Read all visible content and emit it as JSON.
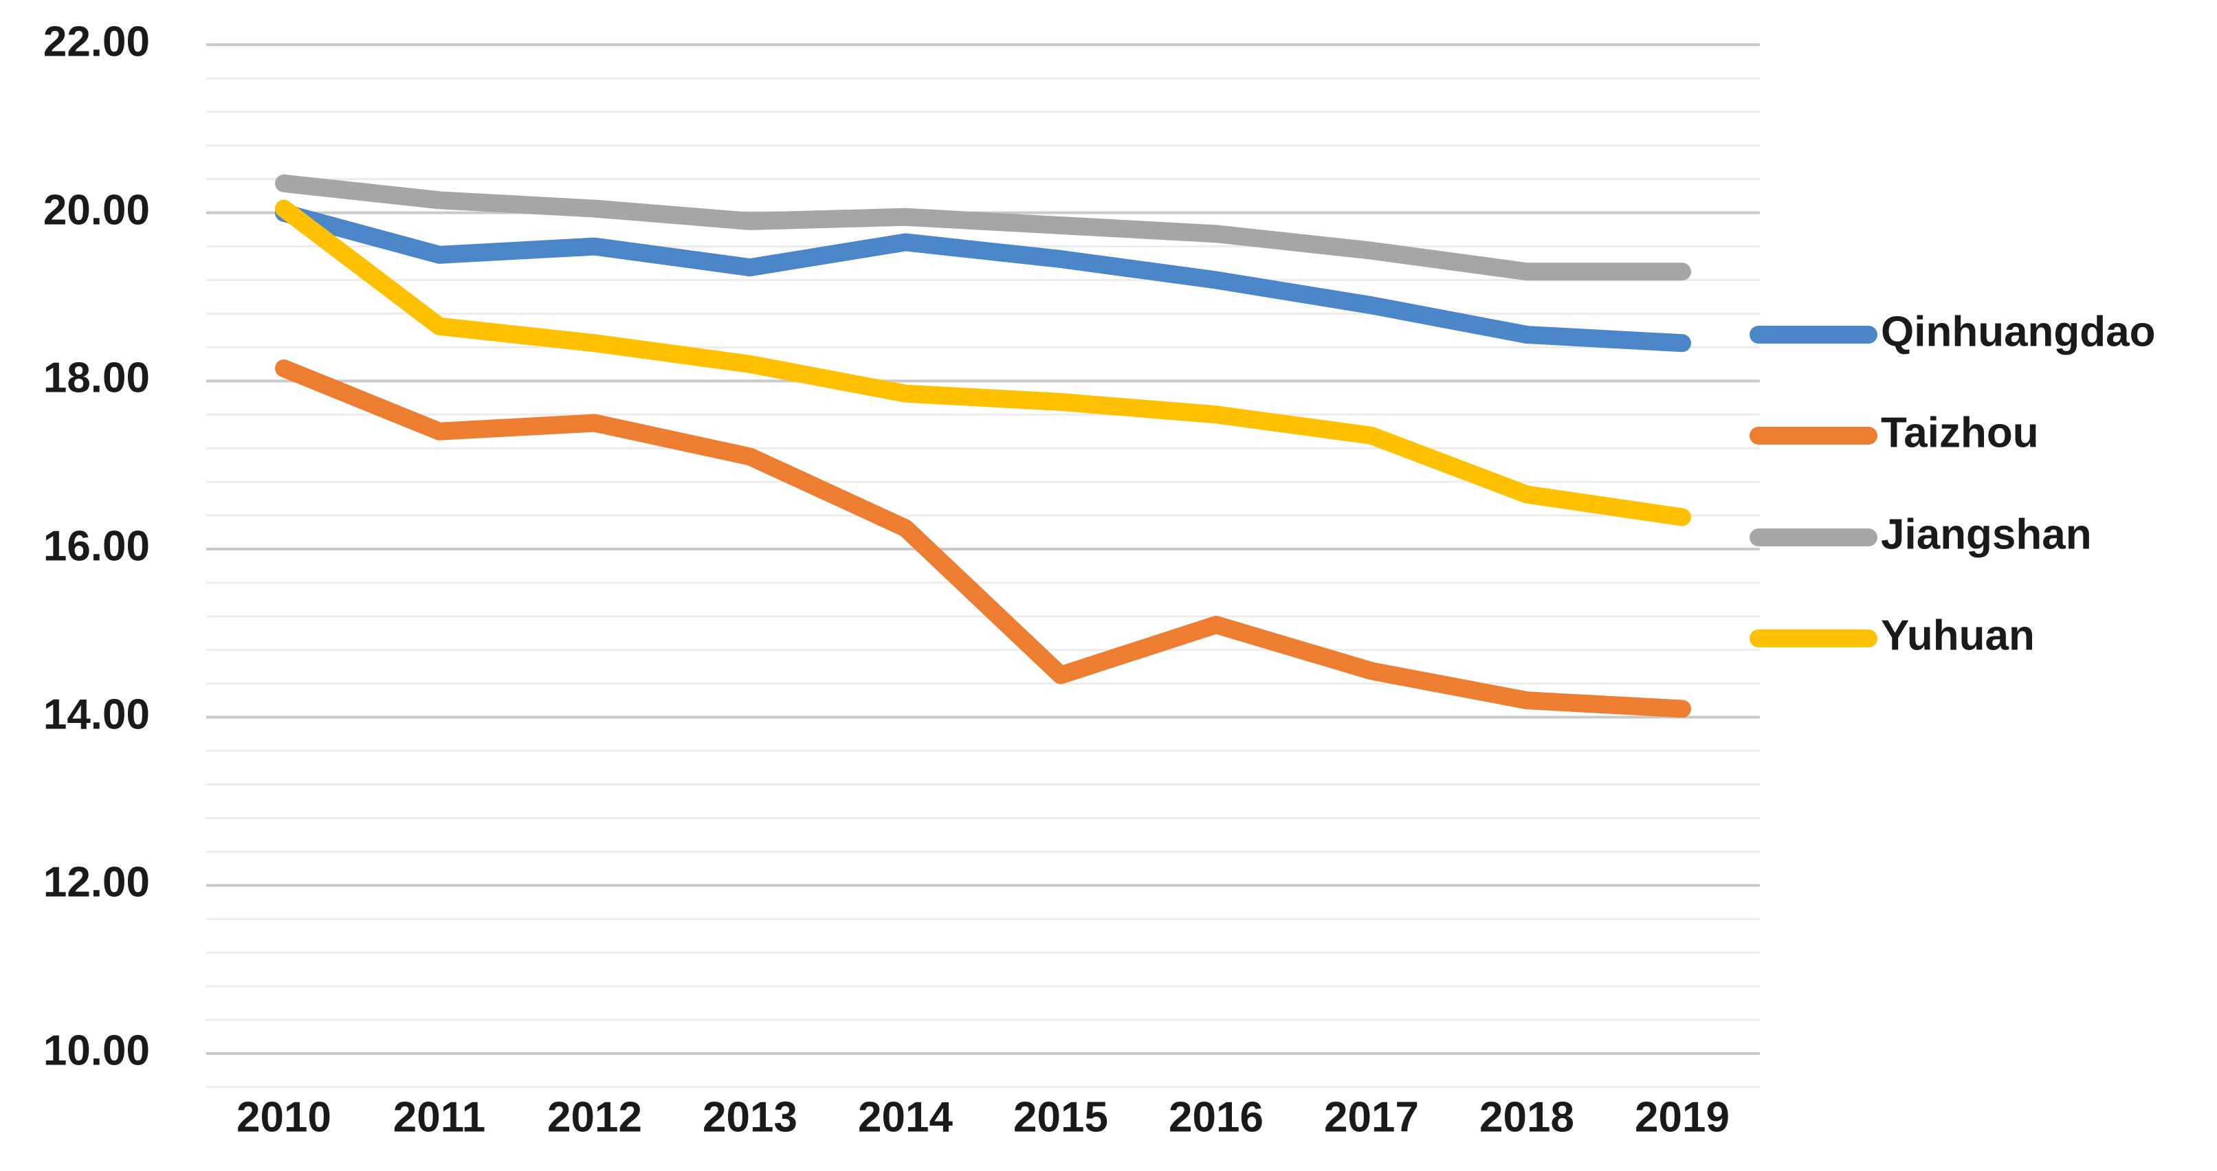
{
  "chart_data": {
    "type": "line",
    "title": "",
    "xlabel": "",
    "ylabel": "",
    "categories": [
      "2010",
      "2011",
      "2012",
      "2013",
      "2014",
      "2015",
      "2016",
      "2017",
      "2018",
      "2019"
    ],
    "series": [
      {
        "name": "Qinhuangdao",
        "color": "#4A86C8",
        "values": [
          20.0,
          19.5,
          19.6,
          19.35,
          19.65,
          19.45,
          19.2,
          18.9,
          18.55,
          18.45
        ]
      },
      {
        "name": "Taizhou",
        "color": "#ED7D31",
        "values": [
          18.15,
          17.4,
          17.5,
          17.1,
          16.25,
          14.5,
          15.1,
          14.55,
          14.2,
          14.1
        ]
      },
      {
        "name": "Jiangshan",
        "color": "#A6A6A6",
        "values": [
          20.35,
          20.15,
          20.05,
          19.9,
          19.95,
          19.85,
          19.75,
          19.55,
          19.3,
          19.3
        ]
      },
      {
        "name": "Yuhuan",
        "color": "#FFC000",
        "values": [
          20.05,
          18.65,
          18.45,
          18.2,
          17.85,
          17.75,
          17.6,
          17.35,
          16.65,
          16.38
        ]
      }
    ],
    "y_ticks": [
      "22.00",
      "20.00",
      "18.00",
      "16.00",
      "14.00",
      "12.00",
      "10.00"
    ],
    "ylim": [
      10.0,
      22.0
    ],
    "y_major_unit": 2.0,
    "y_minor_unit": 0.4,
    "grid": "major-and-minor-horizontal",
    "legend_position": "right",
    "grid_major_color": "#C9C9C9",
    "grid_minor_color": "#ECECEC"
  }
}
